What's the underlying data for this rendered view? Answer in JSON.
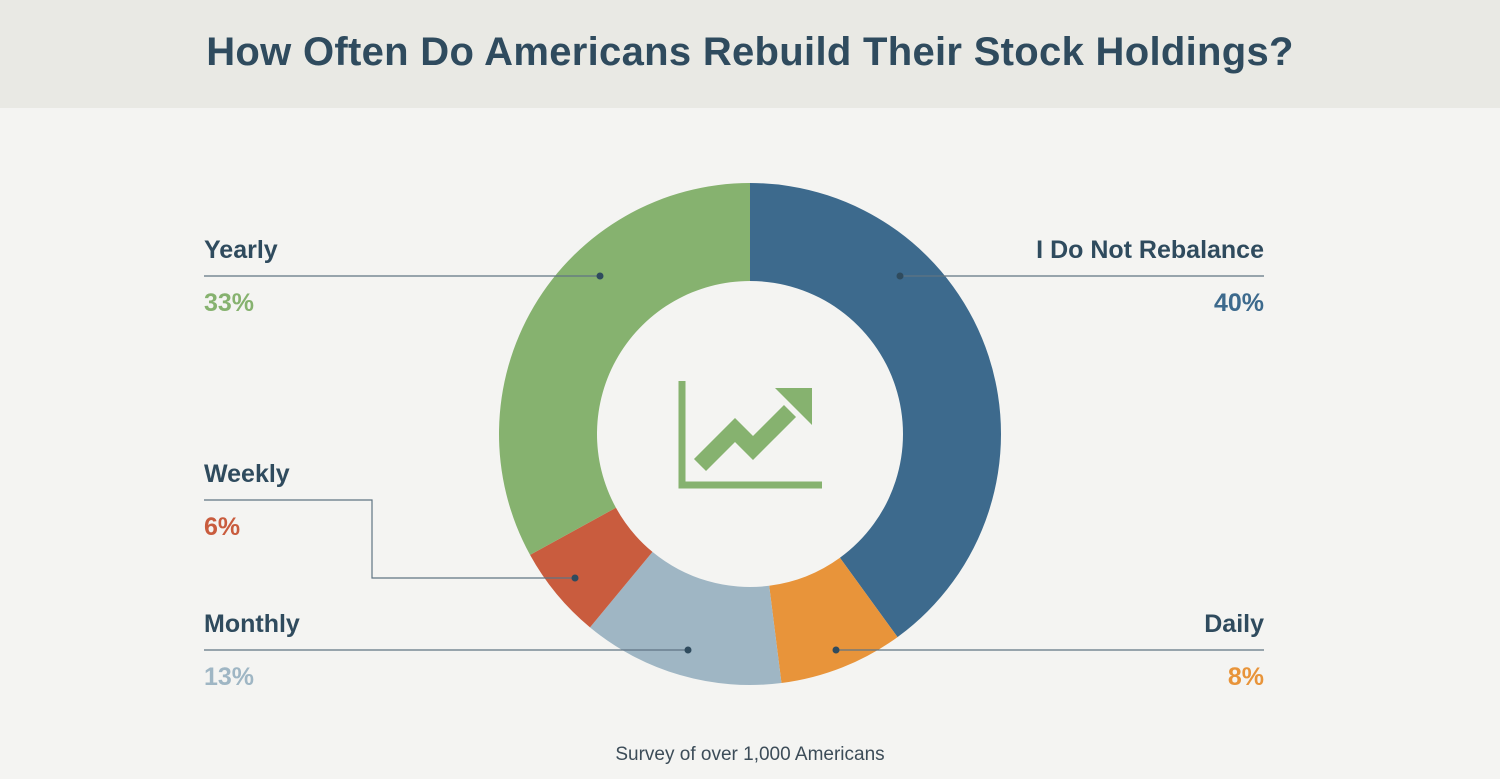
{
  "title": "How Often Do Americans Rebuild Their Stock Holdings?",
  "footer": "Survey of over 1,000 Americans",
  "colors": {
    "text": "#2f4b5e",
    "line": "#5f7483",
    "icon": "#86b26f"
  },
  "icon": "line-chart-up-arrow-icon",
  "chart_data": {
    "type": "pie",
    "donut": true,
    "slices": [
      {
        "label": "I Do Not Rebalance",
        "value": 40,
        "value_label": "40%",
        "color": "#3d6a8d"
      },
      {
        "label": "Daily",
        "value": 8,
        "value_label": "8%",
        "color": "#e8943a"
      },
      {
        "label": "Monthly",
        "value": 13,
        "value_label": "13%",
        "color": "#9fb6c4"
      },
      {
        "label": "Weekly",
        "value": 6,
        "value_label": "6%",
        "color": "#c95c3e"
      },
      {
        "label": "Yearly",
        "value": 33,
        "value_label": "33%",
        "color": "#86b26f"
      }
    ]
  }
}
